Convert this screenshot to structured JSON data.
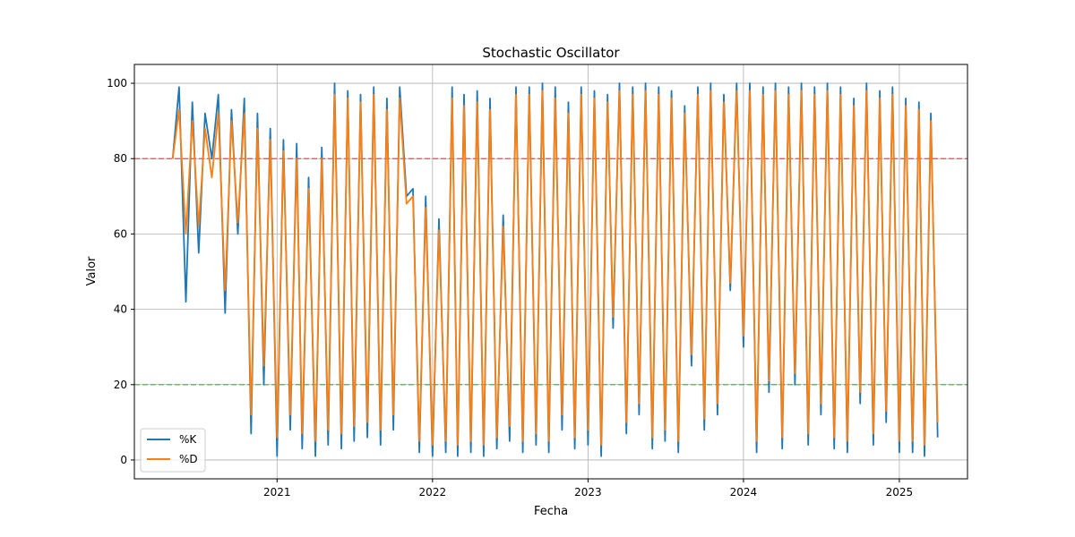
{
  "chart_data": {
    "type": "line",
    "title": "Stochastic Oscillator",
    "xlabel": "Fecha",
    "ylabel": "Valor",
    "x_range": [
      "2020-02-01",
      "2025-06-10"
    ],
    "ylim": [
      -5,
      105
    ],
    "x_ticks": [
      "2021",
      "2022",
      "2023",
      "2024",
      "2025"
    ],
    "y_ticks": [
      "0",
      "20",
      "40",
      "60",
      "80",
      "100"
    ],
    "grid": true,
    "legend_position": "lower-left",
    "reference_lines": [
      {
        "value": 80,
        "color": "#d62728",
        "style": "dashed"
      },
      {
        "value": 20,
        "color": "#2ca02c",
        "style": "dashed"
      }
    ],
    "dates": [
      "2020-05-01",
      "2020-05-16",
      "2020-06-01",
      "2020-06-16",
      "2020-07-01",
      "2020-07-16",
      "2020-08-01",
      "2020-08-16",
      "2020-09-01",
      "2020-09-16",
      "2020-10-01",
      "2020-10-16",
      "2020-11-01",
      "2020-11-16",
      "2020-12-01",
      "2020-12-16",
      "2021-01-01",
      "2021-01-16",
      "2021-02-01",
      "2021-02-16",
      "2021-03-01",
      "2021-03-16",
      "2021-04-01",
      "2021-04-16",
      "2021-05-01",
      "2021-05-16",
      "2021-06-01",
      "2021-06-16",
      "2021-07-01",
      "2021-07-16",
      "2021-08-01",
      "2021-08-16",
      "2021-09-01",
      "2021-09-16",
      "2021-10-01",
      "2021-10-16",
      "2021-11-01",
      "2021-11-16",
      "2021-12-01",
      "2021-12-16",
      "2022-01-01",
      "2022-01-16",
      "2022-02-01",
      "2022-02-16",
      "2022-03-01",
      "2022-03-16",
      "2022-04-01",
      "2022-04-16",
      "2022-05-01",
      "2022-05-16",
      "2022-06-01",
      "2022-06-16",
      "2022-07-01",
      "2022-07-16",
      "2022-08-01",
      "2022-08-16",
      "2022-09-01",
      "2022-09-16",
      "2022-10-01",
      "2022-10-16",
      "2022-11-01",
      "2022-11-16",
      "2022-12-01",
      "2022-12-16",
      "2023-01-01",
      "2023-01-16",
      "2023-02-01",
      "2023-02-16",
      "2023-03-01",
      "2023-03-16",
      "2023-04-01",
      "2023-04-16",
      "2023-05-01",
      "2023-05-16",
      "2023-06-01",
      "2023-06-16",
      "2023-07-01",
      "2023-07-16",
      "2023-08-01",
      "2023-08-16",
      "2023-09-01",
      "2023-09-16",
      "2023-10-01",
      "2023-10-16",
      "2023-11-01",
      "2023-11-16",
      "2023-12-01",
      "2023-12-16",
      "2024-01-01",
      "2024-01-16",
      "2024-02-01",
      "2024-02-16",
      "2024-03-01",
      "2024-03-16",
      "2024-04-01",
      "2024-04-16",
      "2024-05-01",
      "2024-05-16",
      "2024-06-01",
      "2024-06-16",
      "2024-07-01",
      "2024-07-16",
      "2024-08-01",
      "2024-08-16",
      "2024-09-01",
      "2024-09-16",
      "2024-10-01",
      "2024-10-16",
      "2024-11-01",
      "2024-11-16",
      "2024-12-01",
      "2024-12-16",
      "2025-01-01",
      "2025-01-16",
      "2025-02-01",
      "2025-02-16",
      "2025-03-01",
      "2025-03-16",
      "2025-04-01"
    ],
    "series": [
      {
        "name": "%K",
        "color": "#1f77b4",
        "values": [
          80,
          99,
          42,
          95,
          55,
          92,
          80,
          97,
          39,
          93,
          60,
          96,
          7,
          92,
          20,
          88,
          1,
          85,
          8,
          84,
          3,
          75,
          1,
          83,
          4,
          100,
          3,
          98,
          5,
          97,
          6,
          99,
          4,
          96,
          8,
          99,
          70,
          72,
          2,
          70,
          1,
          64,
          2,
          99,
          1,
          97,
          2,
          98,
          1,
          96,
          3,
          65,
          5,
          99,
          2,
          99,
          4,
          100,
          2,
          99,
          8,
          95,
          3,
          99,
          4,
          98,
          1,
          97,
          35,
          100,
          7,
          99,
          12,
          100,
          3,
          99,
          5,
          98,
          2,
          94,
          25,
          99,
          8,
          100,
          12,
          97,
          45,
          100,
          30,
          100,
          2,
          99,
          18,
          100,
          3,
          99,
          20,
          100,
          4,
          99,
          12,
          100,
          3,
          99,
          2,
          96,
          15,
          100,
          4,
          98,
          10,
          99,
          2,
          96,
          2,
          95,
          1,
          92,
          6
        ]
      },
      {
        "name": "%D",
        "color": "#ff7f0e",
        "values": [
          80,
          93,
          60,
          90,
          62,
          88,
          75,
          92,
          45,
          90,
          63,
          92,
          12,
          88,
          25,
          85,
          6,
          82,
          12,
          80,
          7,
          72,
          5,
          80,
          8,
          97,
          7,
          96,
          9,
          95,
          10,
          97,
          8,
          93,
          12,
          96,
          68,
          70,
          5,
          67,
          4,
          61,
          5,
          96,
          4,
          94,
          5,
          95,
          4,
          93,
          6,
          62,
          9,
          97,
          5,
          97,
          7,
          98,
          5,
          96,
          12,
          92,
          6,
          97,
          8,
          96,
          4,
          95,
          38,
          98,
          10,
          97,
          15,
          98,
          6,
          97,
          8,
          96,
          5,
          92,
          28,
          97,
          11,
          98,
          15,
          95,
          47,
          98,
          33,
          98,
          5,
          97,
          21,
          98,
          6,
          97,
          23,
          98,
          7,
          97,
          15,
          98,
          6,
          97,
          5,
          94,
          18,
          98,
          7,
          96,
          13,
          97,
          5,
          94,
          5,
          93,
          4,
          90,
          10
        ]
      }
    ]
  }
}
